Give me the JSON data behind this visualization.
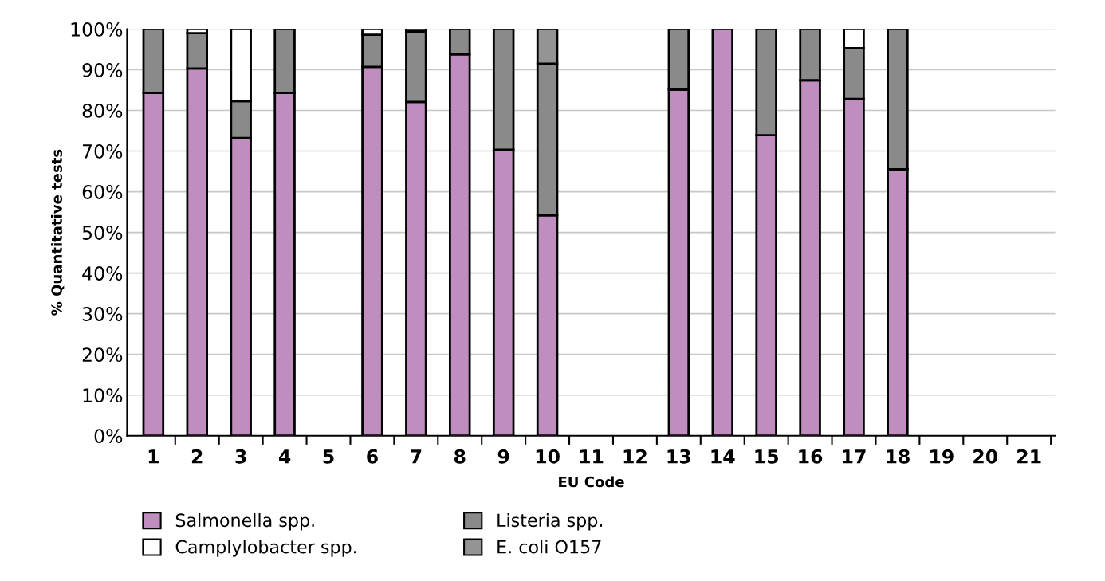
{
  "chart_data": {
    "type": "bar",
    "stacked": true,
    "xlabel": "EU Code",
    "ylabel": "% Quantitative tests",
    "categories": [
      "1",
      "2",
      "3",
      "4",
      "5",
      "6",
      "7",
      "8",
      "9",
      "10",
      "11",
      "12",
      "13",
      "14",
      "15",
      "16",
      "17",
      "18",
      "19",
      "20",
      "21"
    ],
    "series": [
      {
        "name": "Salmonella spp.",
        "color": "#c08dbf",
        "values": [
          84.3,
          90.3,
          73.2,
          84.3,
          null,
          90.7,
          82.1,
          93.8,
          70.3,
          54.2,
          null,
          null,
          85.1,
          100,
          73.9,
          87.4,
          82.8,
          65.5,
          null,
          null,
          null
        ]
      },
      {
        "name": "Listeria spp.",
        "color": "#8a8a8a",
        "values": [
          15.7,
          8.7,
          9.1,
          15.7,
          null,
          7.9,
          17.3,
          6.2,
          29.7,
          37.3,
          null,
          null,
          14.9,
          null,
          26.1,
          12.6,
          12.5,
          34.5,
          null,
          null,
          null
        ]
      },
      {
        "name": "Camplylobacter spp.",
        "color": "#ffffff",
        "values": [
          null,
          1.0,
          17.7,
          null,
          null,
          1.4,
          0.6,
          null,
          null,
          null,
          null,
          null,
          null,
          null,
          null,
          null,
          4.7,
          null,
          null,
          null,
          null
        ]
      },
      {
        "name": "E. coli O157",
        "color": "#949494",
        "values": [
          null,
          null,
          null,
          null,
          null,
          null,
          null,
          null,
          null,
          8.5,
          null,
          null,
          null,
          null,
          null,
          null,
          null,
          null,
          null,
          null,
          null
        ]
      }
    ],
    "ylim": [
      0,
      100
    ],
    "yticks": [
      {
        "value": 0,
        "label": "0%"
      },
      {
        "value": 10,
        "label": "10%"
      },
      {
        "value": 20,
        "label": "20%"
      },
      {
        "value": 30,
        "label": "30%"
      },
      {
        "value": 40,
        "label": "40%"
      },
      {
        "value": 50,
        "label": "50%"
      },
      {
        "value": 60,
        "label": "60%"
      },
      {
        "value": 70,
        "label": "70%"
      },
      {
        "value": 80,
        "label": "80%"
      },
      {
        "value": 90,
        "label": "90%"
      },
      {
        "value": 100,
        "label": "100%"
      }
    ],
    "grid": "y",
    "legend": "bottom"
  }
}
